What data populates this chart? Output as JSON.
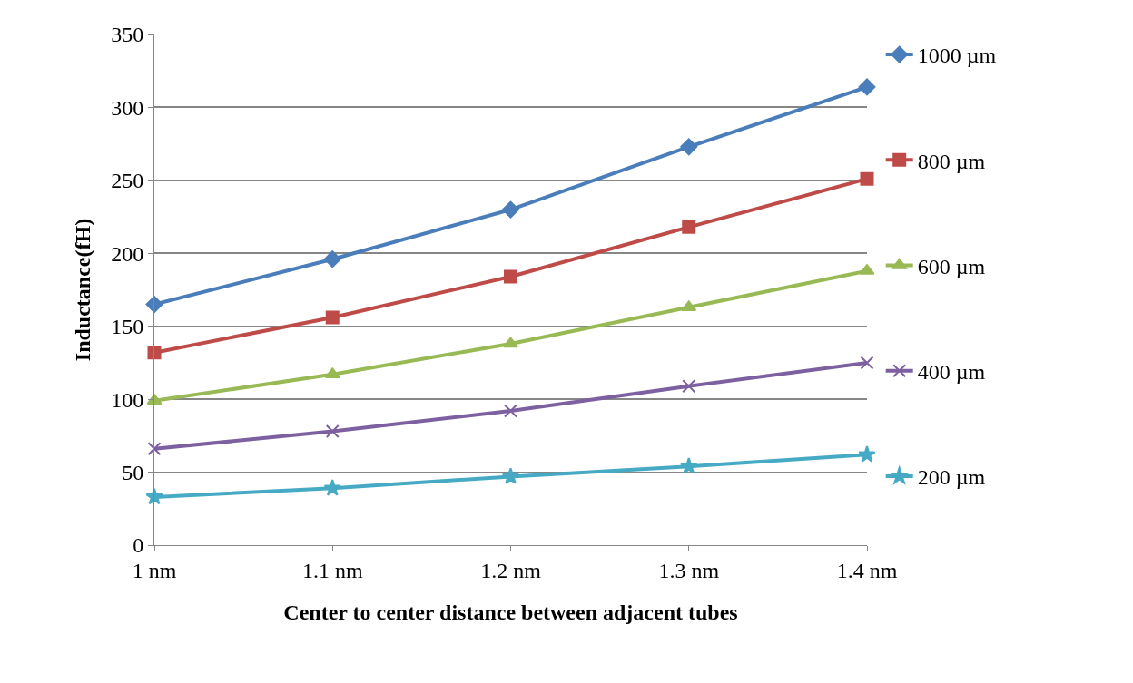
{
  "chart_data": {
    "type": "line",
    "xlabel": "Center to center distance between adjacent tubes",
    "ylabel": "Inductance(fH)",
    "categories": [
      "1 nm",
      "1.1 nm",
      "1.2 nm",
      "1.3 nm",
      "1.4 nm"
    ],
    "ylim": [
      0,
      350
    ],
    "yticks": [
      0,
      50,
      100,
      150,
      200,
      250,
      300,
      350
    ],
    "grid": "y",
    "legend": "right",
    "line_style": "solid",
    "series": [
      {
        "name": "1000 µm",
        "color": "#4a7ebb",
        "marker": "diamond",
        "values": [
          165,
          196,
          230,
          273,
          314
        ]
      },
      {
        "name": "800 µm",
        "color": "#be4b48",
        "marker": "square",
        "values": [
          132,
          156,
          184,
          218,
          251
        ]
      },
      {
        "name": "600 µm",
        "color": "#98b954",
        "marker": "triangle",
        "values": [
          99,
          117,
          138,
          163,
          188
        ]
      },
      {
        "name": "400 µm",
        "color": "#7d60a0",
        "marker": "cross",
        "values": [
          66,
          78,
          92,
          109,
          125
        ]
      },
      {
        "name": "200 µm",
        "color": "#46aac5",
        "marker": "star",
        "values": [
          33,
          39,
          47,
          54,
          62
        ]
      }
    ]
  }
}
